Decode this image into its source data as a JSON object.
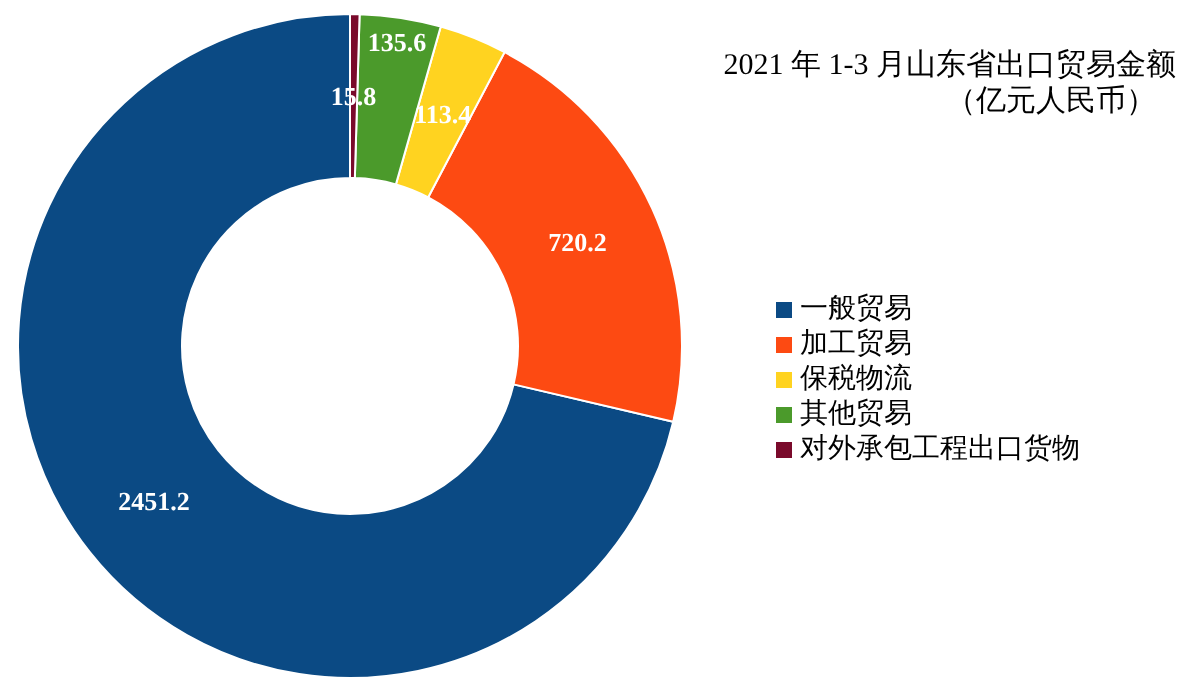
{
  "chart_data": {
    "type": "donut",
    "title": "2021 年 1-3 月山东省出口贸易金额",
    "subtitle": "（亿元人民币）",
    "categories": [
      "一般贸易",
      "加工贸易",
      "保税物流",
      "其他贸易",
      "对外承包工程出口货物"
    ],
    "values": [
      2451.2,
      720.2,
      113.4,
      135.6,
      15.8
    ],
    "colors": [
      "#0b4a84",
      "#fd4a12",
      "#ffd320",
      "#4b9a2b",
      "#7a0a2b"
    ],
    "data_labels": true,
    "legend": "right"
  }
}
